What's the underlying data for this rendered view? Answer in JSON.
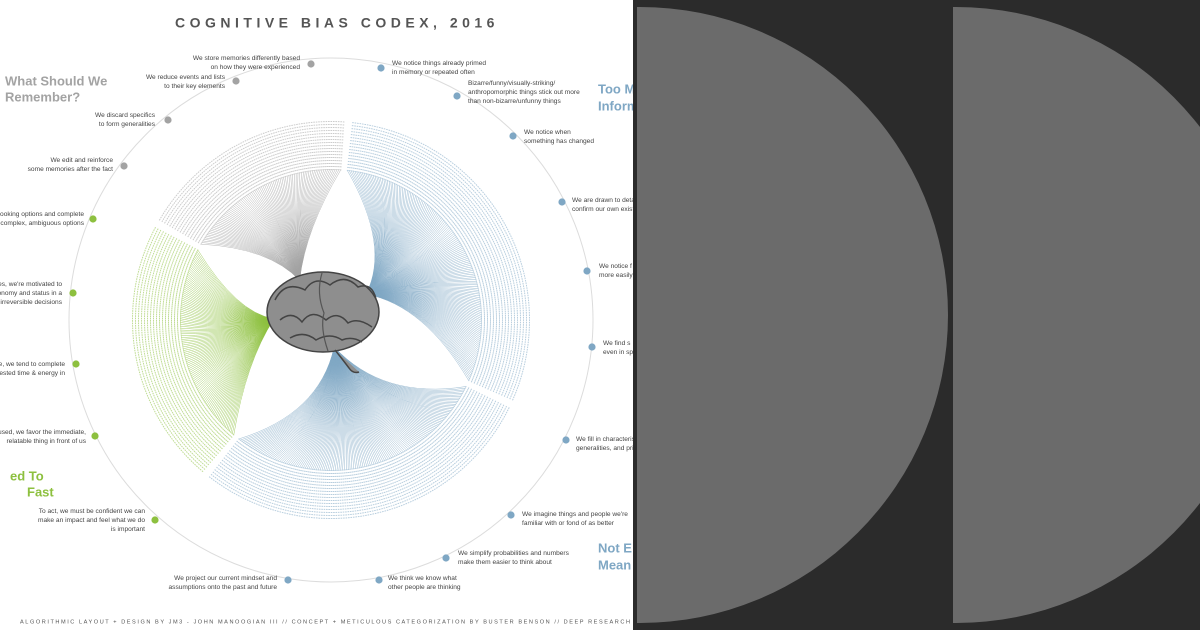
{
  "title": "COGNITIVE BIAS CODEX, 2016",
  "footer": "ALGORITHMIC LAYOUT + DESIGN BY JM3 - JOHN MANOOGIAN III // CONCEPT + METICULOUS CATEGORIZATION BY BUSTER BENSON // DEEP RESEARCH BY WIKIPEDIANS FAR + WIDE",
  "groups": [
    {
      "heading": [
        "What Should We",
        "Remember?"
      ],
      "color": "#a3a3a3",
      "items": [
        [
          "We store memories differently based",
          "on how they were experienced"
        ],
        [
          "We reduce events and lists",
          "to their key elements"
        ],
        [
          "We discard specifics",
          "to form generalities"
        ],
        [
          "We edit and reinforce",
          "some memories after the fact"
        ]
      ]
    },
    {
      "heading": [
        "Too M",
        "Inform"
      ],
      "color": "#7fa7c4",
      "items": [
        [
          "We notice things already primed",
          "in memory or repeated often"
        ],
        [
          "Bizarre/funny/visually-striking/",
          "anthropomorphic things stick out more",
          "than non-bizarre/unfunny things"
        ],
        [
          "We notice when",
          "something has changed"
        ],
        [
          "We are drawn to deta",
          "confirm our own exist"
        ],
        [
          "We notice f",
          "more easily"
        ]
      ]
    },
    {
      "heading": [
        "Not E",
        "Mean"
      ],
      "color": "#7fa7c4",
      "items": [
        [
          "We find s",
          "even in sp"
        ],
        [
          "We fill in characteris",
          "generalities, and pri"
        ],
        [
          "We imagine things and people we're",
          "familiar with or fond of as better"
        ],
        [
          "We simplify probabilities and numbers",
          "make them easier to think about"
        ],
        [
          "We think we know what",
          "other people are thinking"
        ],
        [
          "We project our current mindset and",
          "assumptions onto the past and future"
        ]
      ]
    },
    {
      "heading": [
        "ed To",
        "Fast"
      ],
      "color": "#8dc03f",
      "items": [
        [
          "looking options and complete",
          "r complex, ambiguous options"
        ],
        [
          "es, we're motivated to",
          "onomy and status in a",
          "l irreversible decisions"
        ],
        [
          "e, we tend to complete",
          "vested time & energy in"
        ],
        [
          "ocused, we favor the immediate,",
          "relatable thing in front of us"
        ],
        [
          "To act, we must be confident we can",
          "make an impact and feel what we do",
          "is important"
        ]
      ]
    }
  ]
}
